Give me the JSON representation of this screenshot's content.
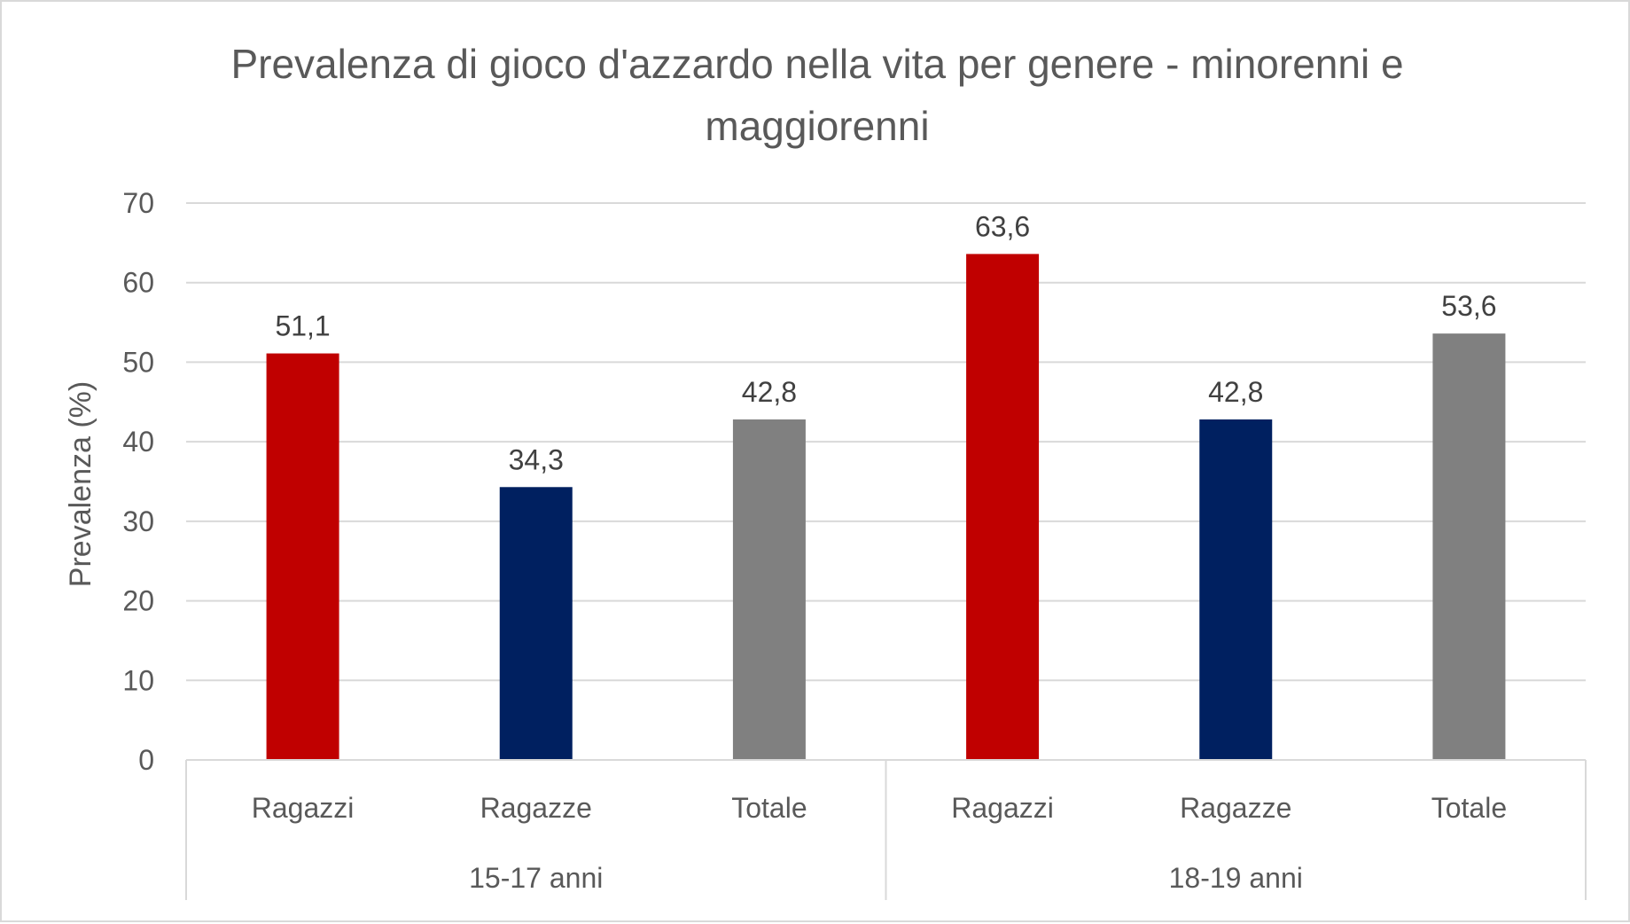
{
  "chart_data": {
    "type": "bar",
    "title": "Prevalenza di gioco d'azzardo nella vita per genere - minorenni e maggiorenni",
    "title_lines": [
      "Prevalenza di gioco d'azzardo nella vita per genere - minorenni e",
      "maggiorenni"
    ],
    "ylabel": "Prevalenza (%)",
    "xlabel": "",
    "ylim": [
      0,
      70
    ],
    "yticks": [
      0,
      10,
      20,
      30,
      40,
      50,
      60,
      70
    ],
    "grid": true,
    "groups": [
      {
        "label": "15-17 anni",
        "categories": [
          "Ragazzi",
          "Ragazze",
          "Totale"
        ],
        "values": [
          51.1,
          34.3,
          42.8
        ],
        "value_labels": [
          "51,1",
          "34,3",
          "42,8"
        ]
      },
      {
        "label": "18-19 anni",
        "categories": [
          "Ragazzi",
          "Ragazze",
          "Totale"
        ],
        "values": [
          63.6,
          42.8,
          53.6
        ],
        "value_labels": [
          "63,6",
          "42,8",
          "53,6"
        ]
      }
    ],
    "colors": {
      "Ragazzi": "#c00000",
      "Ragazze": "#002060",
      "Totale": "#808080"
    }
  }
}
